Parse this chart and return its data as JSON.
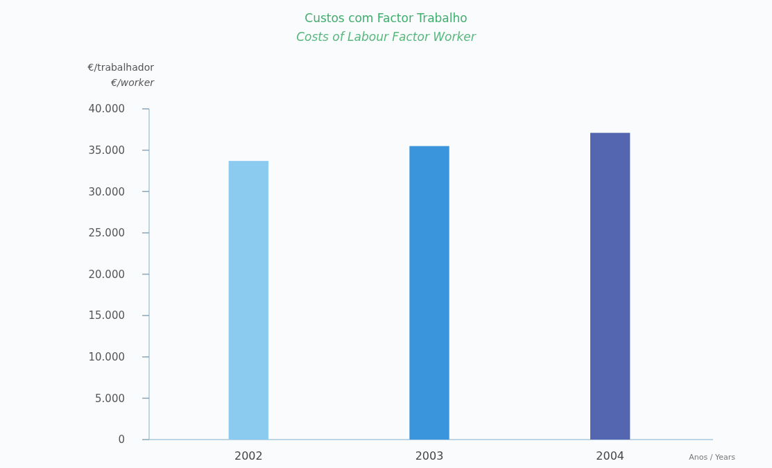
{
  "chart_data": {
    "type": "bar",
    "title": "Custos com Factor Trabalho",
    "subtitle": "Costs of Labour Factor Worker",
    "ylabel": "€/trabalhador\n€/worker",
    "xlabel": "Anos / Years",
    "categories": [
      "2002",
      "2003",
      "2004"
    ],
    "values": [
      33700,
      35500,
      37100
    ],
    "colors": [
      "#8ccbf0",
      "#3b95dc",
      "#5566b0"
    ],
    "ylim": [
      0,
      40000
    ],
    "yticks": [
      {
        "value": 0,
        "label": "0"
      },
      {
        "value": 5000,
        "label": "5.000"
      },
      {
        "value": 10000,
        "label": "10.000"
      },
      {
        "value": 15000,
        "label": "15.000"
      },
      {
        "value": 20000,
        "label": "20.000"
      },
      {
        "value": 25000,
        "label": "25.000"
      },
      {
        "value": 30000,
        "label": "30.000"
      },
      {
        "value": 35000,
        "label": "35.000"
      },
      {
        "value": 40000,
        "label": "40.000"
      }
    ]
  }
}
